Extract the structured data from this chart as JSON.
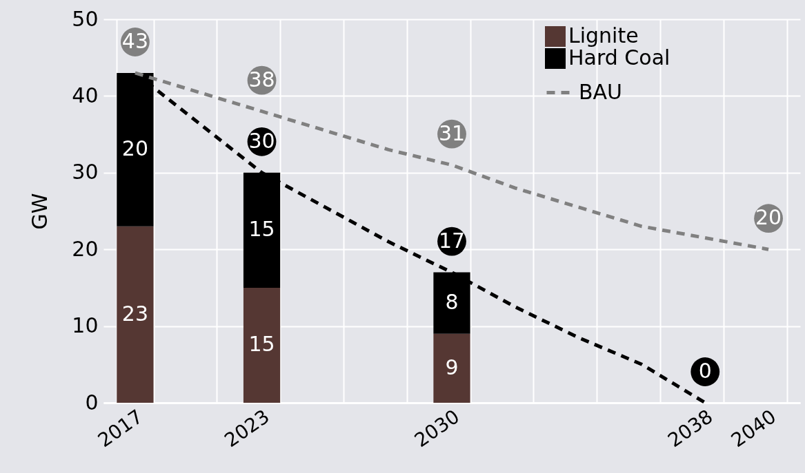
{
  "chart_data": {
    "type": "bar",
    "stacked": true,
    "ylabel": "GW",
    "categories": [
      "2017",
      null,
      "2023",
      null,
      null,
      "2030",
      null,
      null,
      null,
      "2038",
      "2040"
    ],
    "series": [
      {
        "name": "Lignite",
        "color": "#553733",
        "values": [
          23,
          null,
          15,
          null,
          null,
          9,
          null,
          null,
          null,
          null,
          null
        ],
        "value_labels": [
          "23",
          null,
          "15",
          null,
          null,
          "9",
          null,
          null,
          null,
          null,
          null
        ]
      },
      {
        "name": "Hard Coal",
        "color": "#000000",
        "values": [
          20,
          null,
          15,
          null,
          null,
          8,
          null,
          null,
          null,
          null,
          null
        ],
        "value_labels": [
          "20",
          null,
          "15",
          null,
          null,
          "8",
          null,
          null,
          null,
          null,
          null
        ]
      },
      {
        "type": "line",
        "color": "#000000",
        "line_style": "dashed",
        "values": [
          43,
          36.5,
          30,
          25.5,
          21,
          17,
          12.5,
          8.5,
          5,
          0,
          null
        ],
        "value_labels": [
          null,
          null,
          "30",
          null,
          null,
          "17",
          null,
          null,
          null,
          "0",
          null
        ]
      },
      {
        "name": "BAU",
        "type": "line",
        "color": "#808080",
        "line_style": "dashed",
        "values": [
          43,
          40.5,
          38,
          35.5,
          33,
          31,
          28,
          25.5,
          23,
          21.5,
          20
        ],
        "value_labels": [
          "43",
          null,
          "38",
          null,
          null,
          "31",
          null,
          null,
          null,
          null,
          "20"
        ]
      }
    ],
    "ylim": [
      0,
      50
    ],
    "yticks": [
      0,
      10,
      20,
      30,
      40,
      50
    ],
    "grid": true,
    "legend": "top right"
  }
}
